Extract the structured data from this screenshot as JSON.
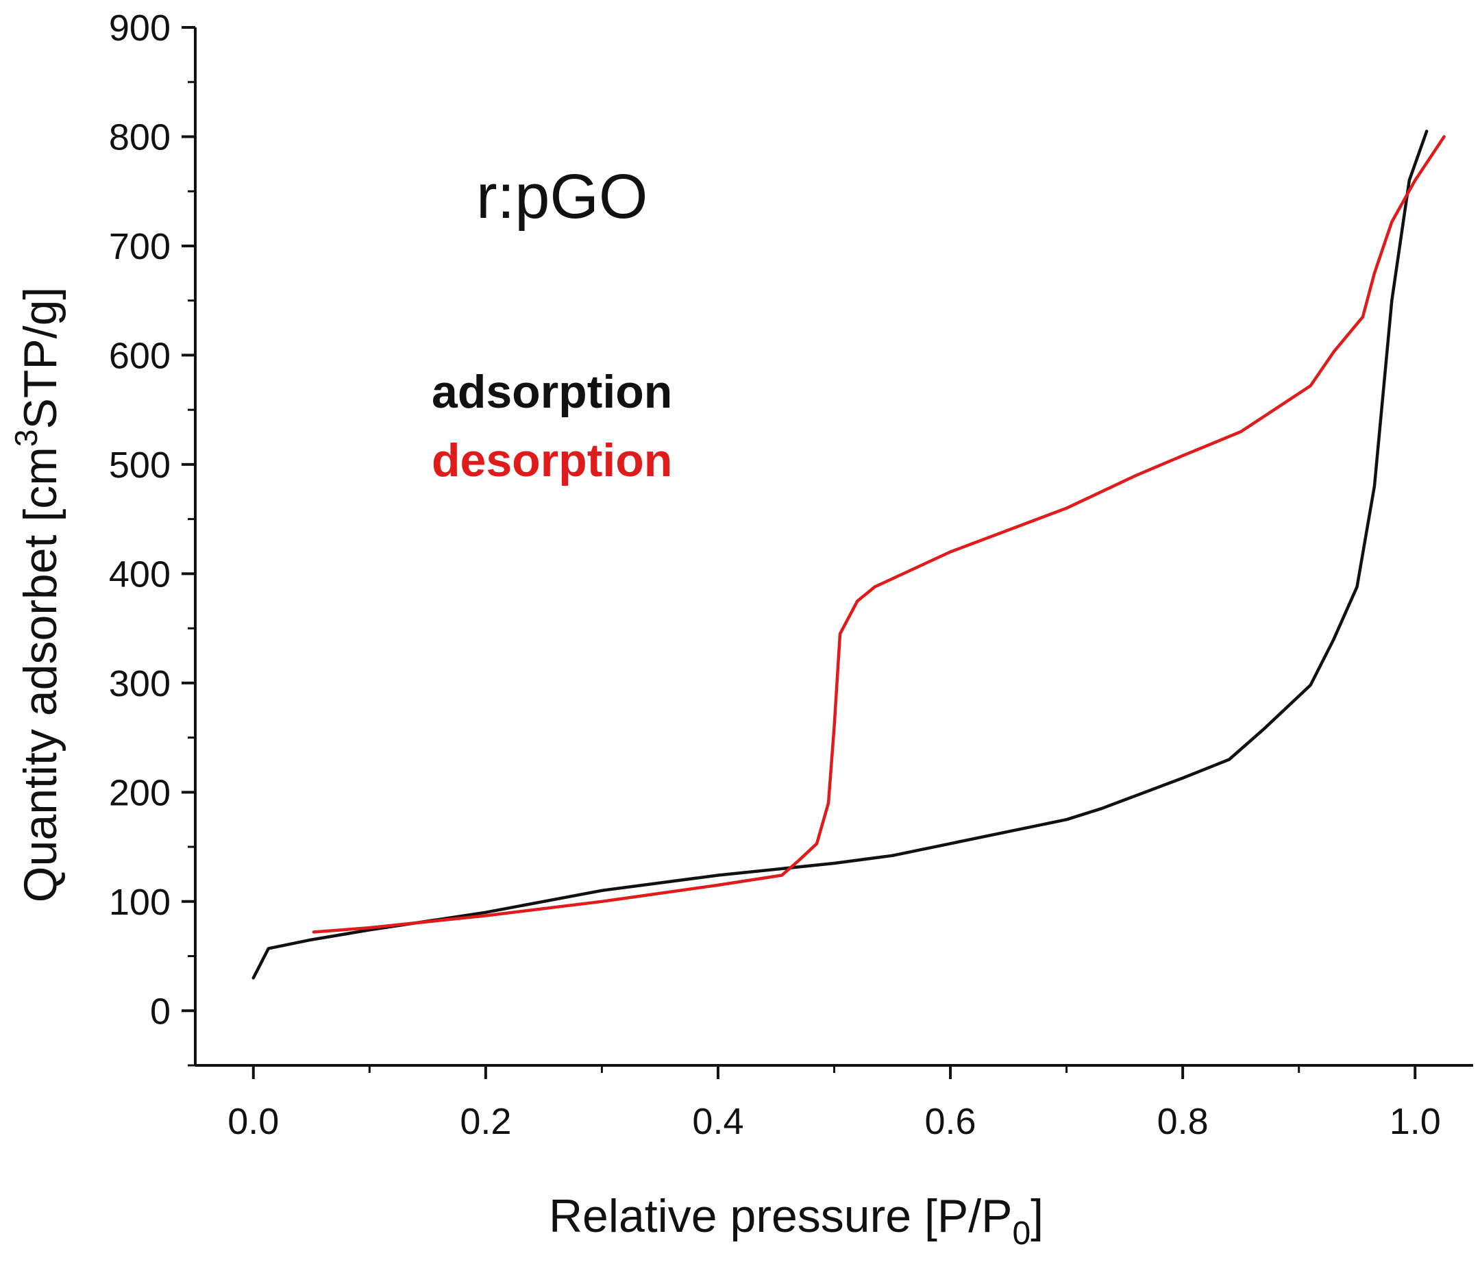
{
  "chart_data": {
    "type": "line",
    "annotation": "r:pGO",
    "xlabel": {
      "main": "Relative pressure [P/P",
      "sub": "0",
      "end": "]"
    },
    "ylabel": {
      "main": "Quantity adsorbet [cm",
      "sup": "3",
      "end": "STP/g]"
    },
    "xlim": [
      -0.05,
      1.05
    ],
    "ylim": [
      -50,
      900
    ],
    "x_ticks": [
      0.0,
      0.2,
      0.4,
      0.6,
      0.8,
      1.0
    ],
    "x_tick_labels": [
      "0.0",
      "0.2",
      "0.4",
      "0.6",
      "0.8",
      "1.0"
    ],
    "y_ticks": [
      0,
      100,
      200,
      300,
      400,
      500,
      600,
      700,
      800,
      900
    ],
    "y_tick_labels": [
      "0",
      "100",
      "200",
      "300",
      "400",
      "500",
      "600",
      "700",
      "800",
      "900"
    ],
    "grid": false,
    "legend_position": "upper-left",
    "series": [
      {
        "name": "adsorption",
        "color": "#111111",
        "points": [
          [
            0.0,
            30
          ],
          [
            0.013,
            57
          ],
          [
            0.05,
            65
          ],
          [
            0.1,
            74
          ],
          [
            0.2,
            90
          ],
          [
            0.3,
            110
          ],
          [
            0.4,
            124
          ],
          [
            0.5,
            135
          ],
          [
            0.55,
            142
          ],
          [
            0.6,
            153
          ],
          [
            0.7,
            175
          ],
          [
            0.73,
            185
          ],
          [
            0.8,
            213
          ],
          [
            0.84,
            230
          ],
          [
            0.87,
            258
          ],
          [
            0.91,
            298
          ],
          [
            0.93,
            340
          ],
          [
            0.95,
            388
          ],
          [
            0.965,
            480
          ],
          [
            0.98,
            650
          ],
          [
            0.995,
            760
          ],
          [
            1.01,
            805
          ]
        ]
      },
      {
        "name": "desorption",
        "color": "#e01b1b",
        "points": [
          [
            0.052,
            72
          ],
          [
            0.1,
            76
          ],
          [
            0.2,
            87
          ],
          [
            0.3,
            100
          ],
          [
            0.4,
            115
          ],
          [
            0.455,
            124
          ],
          [
            0.47,
            138
          ],
          [
            0.485,
            153
          ],
          [
            0.495,
            190
          ],
          [
            0.5,
            260
          ],
          [
            0.505,
            345
          ],
          [
            0.52,
            375
          ],
          [
            0.535,
            388
          ],
          [
            0.6,
            420
          ],
          [
            0.7,
            460
          ],
          [
            0.76,
            490
          ],
          [
            0.8,
            508
          ],
          [
            0.85,
            530
          ],
          [
            0.9,
            565
          ],
          [
            0.91,
            572
          ],
          [
            0.93,
            603
          ],
          [
            0.955,
            635
          ],
          [
            0.965,
            675
          ],
          [
            0.98,
            722
          ],
          [
            1.0,
            760
          ],
          [
            1.025,
            800
          ]
        ]
      }
    ]
  }
}
